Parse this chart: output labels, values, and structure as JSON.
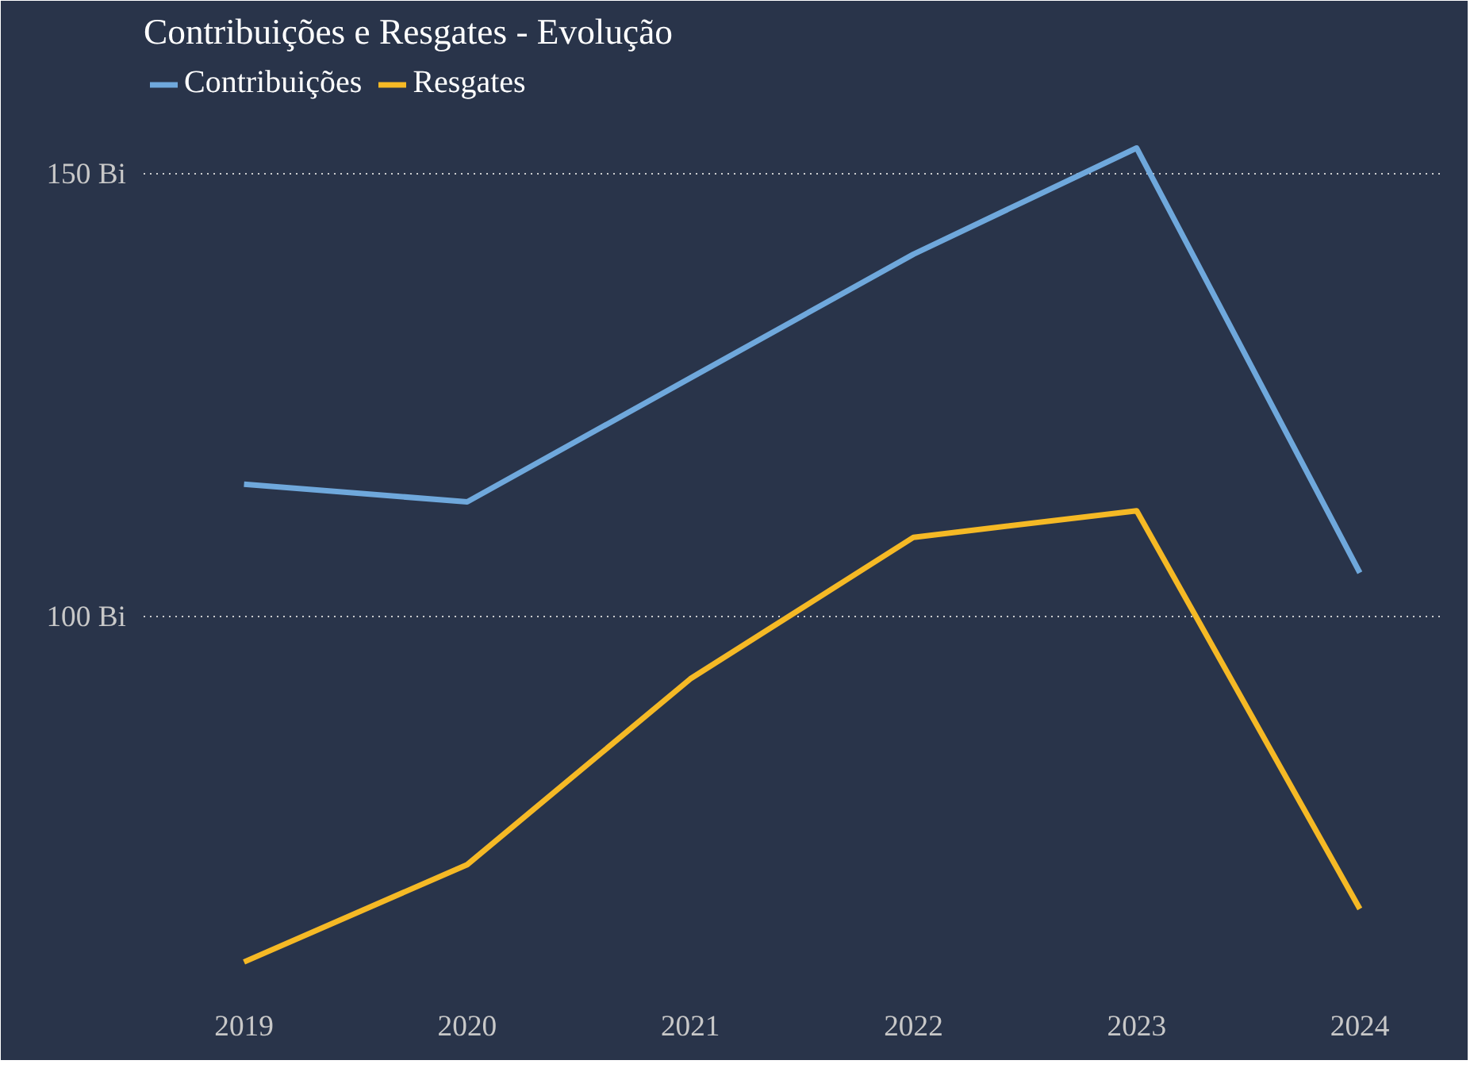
{
  "chart_data": {
    "type": "line",
    "title": "Contribuições e Resgates - Evolução",
    "categories": [
      "2019",
      "2020",
      "2021",
      "2022",
      "2023",
      "2024"
    ],
    "series": [
      {
        "name": "Contribuições",
        "color": "#6fa8dc",
        "values": [
          115,
          113,
          127,
          141,
          153,
          105
        ]
      },
      {
        "name": "Resgates",
        "color": "#f5b925",
        "values": [
          61,
          72,
          93,
          109,
          112,
          67
        ]
      }
    ],
    "ylim": [
      57,
      163
    ],
    "yticks": [
      {
        "value": 100,
        "label": "100 Bi"
      },
      {
        "value": 150,
        "label": "150 Bi"
      }
    ],
    "grid": "y",
    "legend": "top left",
    "marker": "none",
    "line_style": "solid"
  }
}
